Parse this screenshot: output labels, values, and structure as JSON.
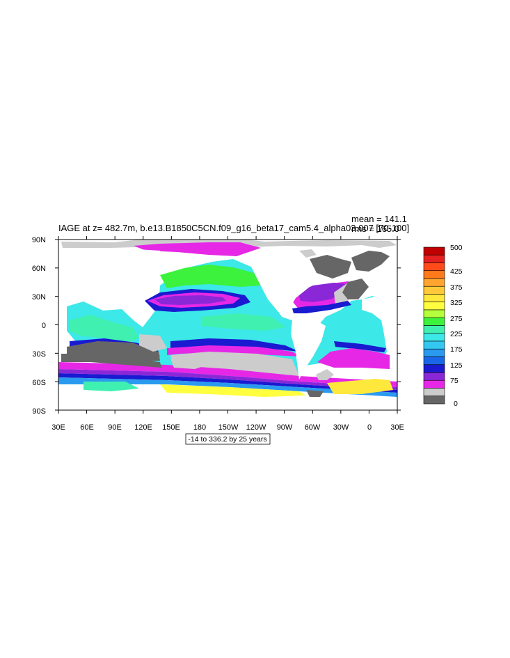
{
  "plot": {
    "title": "IAGE at z= 482.7m, b.e13.B1850C5CN.f09_g16_beta17_cam5.4_alpha03.007 [70-100]",
    "stats": {
      "mean": "mean = 141.1",
      "rms": "rms = 165.0"
    },
    "contour_info": "-14 to 336.2 by 25 years",
    "lat_ticks": [
      "90N",
      "60N",
      "30N",
      "0",
      "30S",
      "60S",
      "90S"
    ],
    "lon_ticks": [
      "30E",
      "60E",
      "90E",
      "120E",
      "150E",
      "180",
      "150W",
      "120W",
      "90W",
      "60W",
      "30W",
      "0",
      "30E"
    ]
  },
  "legend": {
    "labels": [
      "500",
      "425",
      "375",
      "325",
      "275",
      "225",
      "175",
      "125",
      "75",
      "0"
    ],
    "colors": [
      "#c00000",
      "#e52020",
      "#ff4a1a",
      "#ff7a1a",
      "#ffa530",
      "#ffc93a",
      "#ffe83c",
      "#ffff40",
      "#b5ff3c",
      "#3cf23c",
      "#40f0b0",
      "#3ce8e8",
      "#34c8f0",
      "#2a9af0",
      "#1a66e8",
      "#1a1ad0",
      "#8a28d8",
      "#e628e6",
      "#cccccc",
      "#666666"
    ]
  },
  "colors": {
    "land": "#ffffff",
    "low_value_gray": "#cccccc",
    "lowest_value_gray": "#666666",
    "magenta": "#e628e6",
    "purple": "#8a28d8",
    "blue": "#1a1ad0",
    "cyan": "#3ce8e8",
    "light_cyan": "#40f0b0",
    "green": "#3cf23c",
    "yellow": "#ffff40"
  }
}
